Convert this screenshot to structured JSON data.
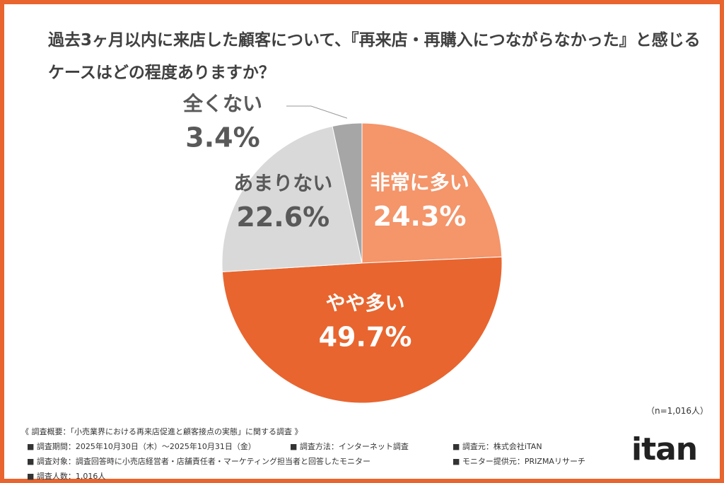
{
  "chart_data": {
    "type": "pie",
    "title": "過去3ヶ月以内に来店した顧客について、『再来店・再購入につながらなかった』と感じるケースはどの程度ありますか？",
    "categories": [
      "非常に多い",
      "やや多い",
      "あまりない",
      "全くない"
    ],
    "values": [
      24.3,
      49.7,
      22.6,
      3.4
    ],
    "value_labels": [
      "24.3%",
      "49.7%",
      "22.6%",
      "3.4%"
    ],
    "colors": [
      "#f4956a",
      "#e8652f",
      "#d9d9d9",
      "#a6a6a6"
    ],
    "note": "（n=1,016人）"
  },
  "footer": {
    "heading": "《 調査概要：「小売業界における再来店促進と顧客接点の実態」に関する調査 》",
    "items": [
      "■ 調査期間：2025年10月30日（木）～2025年10月31日（金）",
      "■ 調査方法：インターネット調査",
      "■ 調査元：株式会社iTAN",
      "■ 調査対象：調査回答時に小売店経営者・店舗責任者・マーケティング担当者と回答したモニター",
      "■ モニター提供元：PRIZMAリサーチ",
      "■ 調査人数：1,016人"
    ]
  },
  "logo": "itan"
}
